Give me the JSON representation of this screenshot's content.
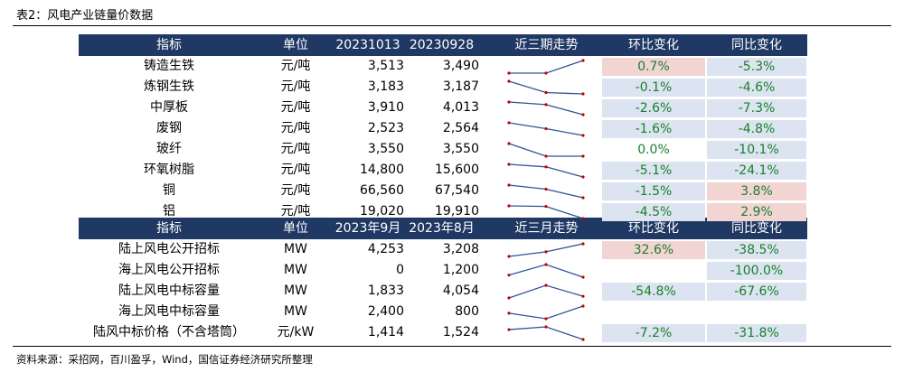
{
  "caption": "表2：风电产业链量价数据",
  "source": "资料来源：采招网，百川盈孚，Wind，国信证券经济研究所整理",
  "colors": {
    "header_bg": "#203864",
    "green_text": "#1a7f2a",
    "pink_fill": "#f2d4d3",
    "blue_fill": "#dbe4f0",
    "spark_line": "#2f5597",
    "spark_dot": "#c00000"
  },
  "section1": {
    "headers": [
      "指标",
      "单位",
      "20231013",
      "20230928",
      "近三期走势",
      "环比变化",
      "同比变化"
    ],
    "rows": [
      {
        "name": "铸造生铁",
        "unit": "元/吨",
        "v1": "3,513",
        "v2": "3,490",
        "mom": "0.7%",
        "yoy": "-5.3%",
        "mom_fill": "pink",
        "yoy_fill": "blue",
        "trend": [
          3490,
          3490,
          3513
        ]
      },
      {
        "name": "炼钢生铁",
        "unit": "元/吨",
        "v1": "3,183",
        "v2": "3,187",
        "mom": "-0.1%",
        "yoy": "-4.6%",
        "mom_fill": "blue",
        "yoy_fill": "blue",
        "trend": [
          3220,
          3187,
          3183
        ]
      },
      {
        "name": "中厚板",
        "unit": "元/吨",
        "v1": "3,910",
        "v2": "4,013",
        "mom": "-2.6%",
        "yoy": "-7.3%",
        "mom_fill": "blue",
        "yoy_fill": "blue",
        "trend": [
          4040,
          4013,
          3910
        ]
      },
      {
        "name": "废钢",
        "unit": "元/吨",
        "v1": "2,523",
        "v2": "2,564",
        "mom": "-1.6%",
        "yoy": "-4.8%",
        "mom_fill": "blue",
        "yoy_fill": "blue",
        "trend": [
          2600,
          2564,
          2523
        ]
      },
      {
        "name": "玻纤",
        "unit": "元/吨",
        "v1": "3,550",
        "v2": "3,550",
        "mom": "0.0%",
        "yoy": "-10.1%",
        "mom_fill": "none",
        "yoy_fill": "blue",
        "trend": [
          3600,
          3550,
          3550
        ]
      },
      {
        "name": "环氧树脂",
        "unit": "元/吨",
        "v1": "14,800",
        "v2": "15,600",
        "mom": "-5.1%",
        "yoy": "-24.1%",
        "mom_fill": "blue",
        "yoy_fill": "blue",
        "trend": [
          15800,
          15600,
          14800
        ]
      },
      {
        "name": "铜",
        "unit": "元/吨",
        "v1": "66,560",
        "v2": "67,540",
        "mom": "-1.5%",
        "yoy": "3.8%",
        "mom_fill": "blue",
        "yoy_fill": "pink",
        "trend": [
          68000,
          67540,
          66560
        ]
      },
      {
        "name": "铝",
        "unit": "元/吨",
        "v1": "19,020",
        "v2": "19,910",
        "mom": "-4.5%",
        "yoy": "2.9%",
        "mom_fill": "blue",
        "yoy_fill": "pink",
        "trend": [
          19950,
          19910,
          19020
        ]
      }
    ]
  },
  "section2": {
    "headers": [
      "指标",
      "单位",
      "2023年9月",
      "2023年8月",
      "近三月走势",
      "环比变化",
      "同比变化"
    ],
    "rows": [
      {
        "name": "陆上风电公开招标",
        "unit": "MW",
        "v1": "4,253",
        "v2": "3,208",
        "mom": "32.6%",
        "yoy": "-38.5%",
        "mom_fill": "pink",
        "yoy_fill": "blue",
        "trend": [
          2600,
          3208,
          4253
        ]
      },
      {
        "name": "海上风电公开招标",
        "unit": "MW",
        "v1": "0",
        "v2": "1,200",
        "mom": "",
        "yoy": "-100.0%",
        "mom_fill": "none",
        "yoy_fill": "blue",
        "trend": [
          200,
          1200,
          0
        ]
      },
      {
        "name": "陆上风电中标容量",
        "unit": "MW",
        "v1": "1,833",
        "v2": "4,054",
        "mom": "-54.8%",
        "yoy": "-67.6%",
        "mom_fill": "blue",
        "yoy_fill": "blue",
        "trend": [
          1500,
          4054,
          1833
        ]
      },
      {
        "name": "海上风电中标容量",
        "unit": "MW",
        "v1": "2,400",
        "v2": "800",
        "mom": "",
        "yoy": "",
        "mom_fill": "none",
        "yoy_fill": "none",
        "trend": [
          1500,
          800,
          2400
        ]
      },
      {
        "name": "陆风中标价格（不含塔筒）",
        "unit": "元/kW",
        "v1": "1,414",
        "v2": "1,524",
        "mom": "-7.2%",
        "yoy": "-31.8%",
        "mom_fill": "blue",
        "yoy_fill": "blue",
        "trend": [
          1500,
          1524,
          1414
        ]
      }
    ]
  }
}
